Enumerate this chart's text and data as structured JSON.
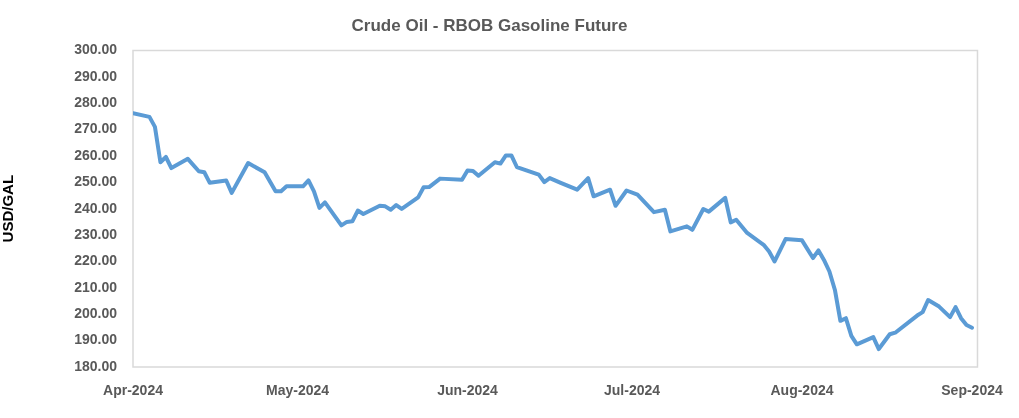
{
  "chart_data": {
    "type": "line",
    "title": "Crude Oil - RBOB Gasoline Future",
    "ylabel": "USD/GAL",
    "color": "#5b9bd5",
    "x": [
      "2024-04-01",
      "2024-04-04",
      "2024-04-05",
      "2024-04-06",
      "2024-04-07",
      "2024-04-08",
      "2024-04-11",
      "2024-04-13",
      "2024-04-14",
      "2024-04-15",
      "2024-04-18",
      "2024-04-19",
      "2024-04-22",
      "2024-04-25",
      "2024-04-27",
      "2024-04-28",
      "2024-04-29",
      "2024-05-02",
      "2024-05-03",
      "2024-05-04",
      "2024-05-05",
      "2024-05-06",
      "2024-05-09",
      "2024-05-10",
      "2024-05-11",
      "2024-05-12",
      "2024-05-13",
      "2024-05-16",
      "2024-05-17",
      "2024-05-18",
      "2024-05-19",
      "2024-05-20",
      "2024-05-23",
      "2024-05-24",
      "2024-05-25",
      "2024-05-27",
      "2024-05-31",
      "2024-06-01",
      "2024-06-02",
      "2024-06-03",
      "2024-06-06",
      "2024-06-07",
      "2024-06-08",
      "2024-06-09",
      "2024-06-10",
      "2024-06-14",
      "2024-06-15",
      "2024-06-16",
      "2024-06-18",
      "2024-06-21",
      "2024-06-23",
      "2024-06-24",
      "2024-06-27",
      "2024-06-28",
      "2024-06-30",
      "2024-07-02",
      "2024-07-05",
      "2024-07-07",
      "2024-07-08",
      "2024-07-11",
      "2024-07-12",
      "2024-07-14",
      "2024-07-15",
      "2024-07-18",
      "2024-07-19",
      "2024-07-20",
      "2024-07-22",
      "2024-07-25",
      "2024-07-26",
      "2024-07-27",
      "2024-07-29",
      "2024-08-01",
      "2024-08-03",
      "2024-08-04",
      "2024-08-05",
      "2024-08-06",
      "2024-08-07",
      "2024-08-08",
      "2024-08-09",
      "2024-08-10",
      "2024-08-11",
      "2024-08-14",
      "2024-08-15",
      "2024-08-17",
      "2024-08-18",
      "2024-08-22",
      "2024-08-23",
      "2024-08-24",
      "2024-08-26",
      "2024-08-28",
      "2024-08-29",
      "2024-08-30",
      "2024-08-31",
      "2024-09-01"
    ],
    "values": [
      276.2,
      274.8,
      271.0,
      257.6,
      259.6,
      255.4,
      258.9,
      254.2,
      253.8,
      249.8,
      250.7,
      246.0,
      257.3,
      253.8,
      246.6,
      246.6,
      248.5,
      248.5,
      250.7,
      246.6,
      240.3,
      242.4,
      233.7,
      235.0,
      235.2,
      239.3,
      238.0,
      241.1,
      240.9,
      239.6,
      241.4,
      239.9,
      244.3,
      248.1,
      248.2,
      251.4,
      251.0,
      254.5,
      254.3,
      252.5,
      257.6,
      257.1,
      260.2,
      260.2,
      255.8,
      252.9,
      250.1,
      251.6,
      249.8,
      247.2,
      251.6,
      244.7,
      247.2,
      241.1,
      246.9,
      245.3,
      238.7,
      239.6,
      231.4,
      233.3,
      232.0,
      239.9,
      238.9,
      244.1,
      234.8,
      235.8,
      230.8,
      226.3,
      223.8,
      220.0,
      228.5,
      228.0,
      221.3,
      224.2,
      220.6,
      216.2,
      209.2,
      197.5,
      198.5,
      191.8,
      188.6,
      191.3,
      186.8,
      192.4,
      193.0,
      199.5,
      200.8,
      205.4,
      202.9,
      198.9,
      202.7,
      198.5,
      195.9,
      194.9
    ],
    "xlim": [
      "2024-04-01",
      "2024-09-02"
    ],
    "xticks": [
      {
        "value": "2024-04-01",
        "label": "Apr-2024"
      },
      {
        "value": "2024-05-01",
        "label": "May-2024"
      },
      {
        "value": "2024-06-01",
        "label": "Jun-2024"
      },
      {
        "value": "2024-07-01",
        "label": "Jul-2024"
      },
      {
        "value": "2024-08-01",
        "label": "Aug-2024"
      },
      {
        "value": "2024-09-01",
        "label": "Sep-2024"
      }
    ],
    "ylim": [
      180,
      300
    ],
    "yticks": [
      {
        "value": 180,
        "label": "180.00"
      },
      {
        "value": 190,
        "label": "190.00"
      },
      {
        "value": 200,
        "label": "200.00"
      },
      {
        "value": 210,
        "label": "210.00"
      },
      {
        "value": 220,
        "label": "220.00"
      },
      {
        "value": 230,
        "label": "230.00"
      },
      {
        "value": 240,
        "label": "240.00"
      },
      {
        "value": 250,
        "label": "250.00"
      },
      {
        "value": 260,
        "label": "260.00"
      },
      {
        "value": 270,
        "label": "270.00"
      },
      {
        "value": 280,
        "label": "280.00"
      },
      {
        "value": 290,
        "label": "290.00"
      },
      {
        "value": 300,
        "label": "300.00"
      }
    ]
  }
}
